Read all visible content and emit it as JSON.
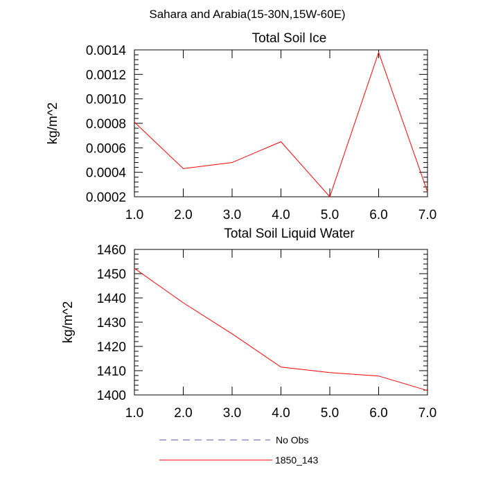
{
  "page": {
    "supertitle": "Sahara and Arabia(15-30N,15W-60E)"
  },
  "chart_data": [
    {
      "type": "line",
      "title": "Total Soil Ice",
      "ylabel": "kg/m^2",
      "xlabel": "",
      "xlim": [
        1.0,
        7.0
      ],
      "ylim": [
        0.0002,
        0.0014
      ],
      "xticks": [
        "1.0",
        "2.0",
        "3.0",
        "4.0",
        "5.0",
        "6.0",
        "7.0"
      ],
      "yticks": [
        "0.0002",
        "0.0004",
        "0.0006",
        "0.0008",
        "0.0010",
        "0.0012",
        "0.0014"
      ],
      "ytick_values": [
        0.0002,
        0.0004,
        0.0006,
        0.0008,
        0.001,
        0.0012,
        0.0014
      ],
      "x": [
        1,
        2,
        3,
        4,
        5,
        6,
        7
      ],
      "series": [
        {
          "name": "1850_143",
          "color": "#ff0000",
          "values": [
            0.00081,
            0.00043,
            0.00048,
            0.00065,
            0.0002,
            0.00138,
            0.00024
          ]
        }
      ],
      "grid": false
    },
    {
      "type": "line",
      "title": "Total Soil Liquid Water",
      "ylabel": "kg/m^2",
      "xlabel": "",
      "xlim": [
        1.0,
        7.0
      ],
      "ylim": [
        1400,
        1460
      ],
      "xticks": [
        "1.0",
        "2.0",
        "3.0",
        "4.0",
        "5.0",
        "6.0",
        "7.0"
      ],
      "yticks": [
        "1400",
        "1410",
        "1420",
        "1430",
        "1440",
        "1450",
        "1460"
      ],
      "ytick_values": [
        1400,
        1410,
        1420,
        1430,
        1440,
        1450,
        1460
      ],
      "x": [
        1,
        2,
        3,
        4,
        5,
        6,
        7
      ],
      "series": [
        {
          "name": "1850_143",
          "color": "#ff0000",
          "values": [
            1452.2,
            1438.0,
            1425.2,
            1411.5,
            1409.2,
            1407.8,
            1401.8
          ]
        }
      ],
      "grid": false
    }
  ],
  "legend": {
    "placement": "bottom-center",
    "entries": [
      {
        "label": "No Obs",
        "color": "#5555aa",
        "style": "dashed"
      },
      {
        "label": "1850_143",
        "color": "#ff0000",
        "style": "solid"
      }
    ]
  }
}
